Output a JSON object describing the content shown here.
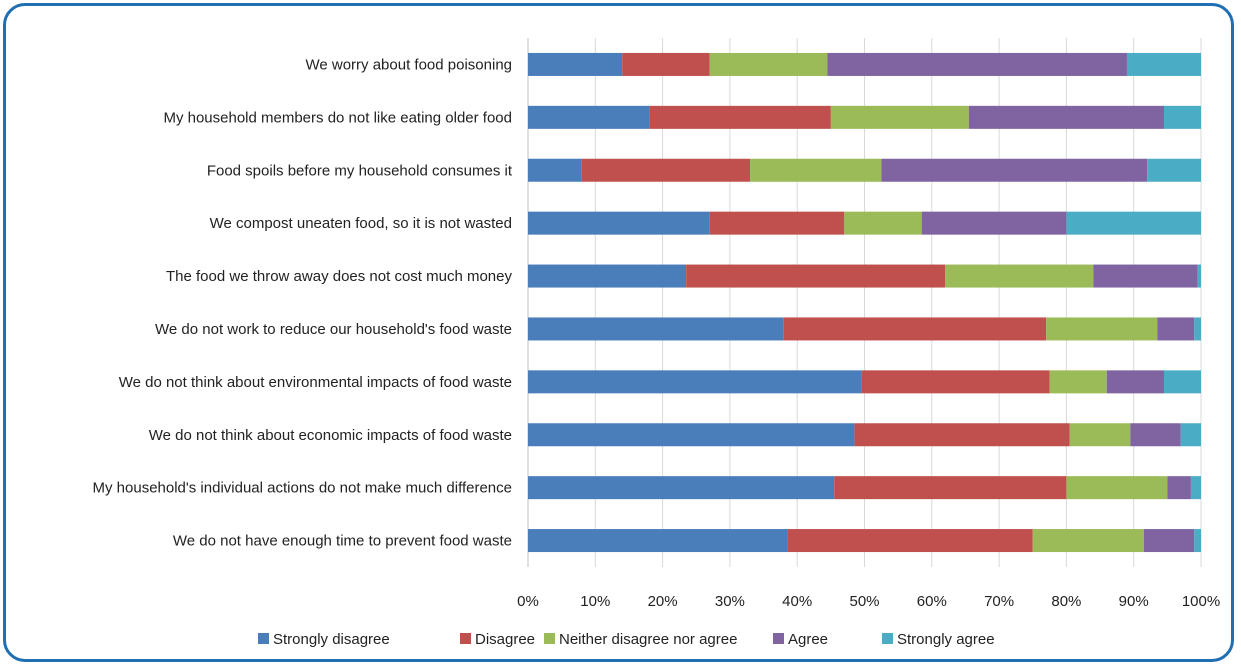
{
  "chart_data": {
    "type": "bar",
    "orientation": "horizontal",
    "stacked": "percent",
    "categories": [
      "We worry about food poisoning",
      "My household members do not like eating older food",
      "Food spoils before my household consumes it",
      "We compost uneaten food, so it is not wasted",
      "The food we throw away does not cost much money",
      "We do not work to reduce our household's food waste",
      "We do not think about environmental impacts of food waste",
      "We do not think about economic impacts of food waste",
      "My household's individual actions do not make much difference",
      "We do not have enough time to prevent food waste"
    ],
    "series": [
      {
        "name": "Strongly disagree",
        "color": "#4a7ebb",
        "values": [
          14,
          18,
          8,
          27,
          23.5,
          38,
          49.5,
          48.5,
          45.5,
          38.5
        ]
      },
      {
        "name": "Disagree",
        "color": "#c0504d",
        "values": [
          13,
          27,
          25,
          20,
          38.5,
          39,
          28,
          32,
          34.5,
          36.5
        ]
      },
      {
        "name": "Neither disagree nor agree",
        "color": "#9bbb59",
        "values": [
          17.5,
          20.5,
          19.5,
          11.5,
          22,
          16.5,
          8.5,
          9,
          15,
          16.5
        ]
      },
      {
        "name": "Agree",
        "color": "#8064a2",
        "values": [
          44.5,
          29,
          39.5,
          21.5,
          15.5,
          5.5,
          8.5,
          7.5,
          3.5,
          7.5
        ]
      },
      {
        "name": "Strongly agree",
        "color": "#4bacc6",
        "values": [
          11,
          5.5,
          8,
          20,
          0.5,
          1,
          5.5,
          3,
          1.5,
          1
        ]
      }
    ],
    "x_ticks": [
      "0%",
      "10%",
      "20%",
      "30%",
      "40%",
      "50%",
      "60%",
      "70%",
      "80%",
      "90%",
      "100%"
    ],
    "xlim": [
      0,
      100
    ],
    "grid": "vertical",
    "legend": "bottom"
  }
}
